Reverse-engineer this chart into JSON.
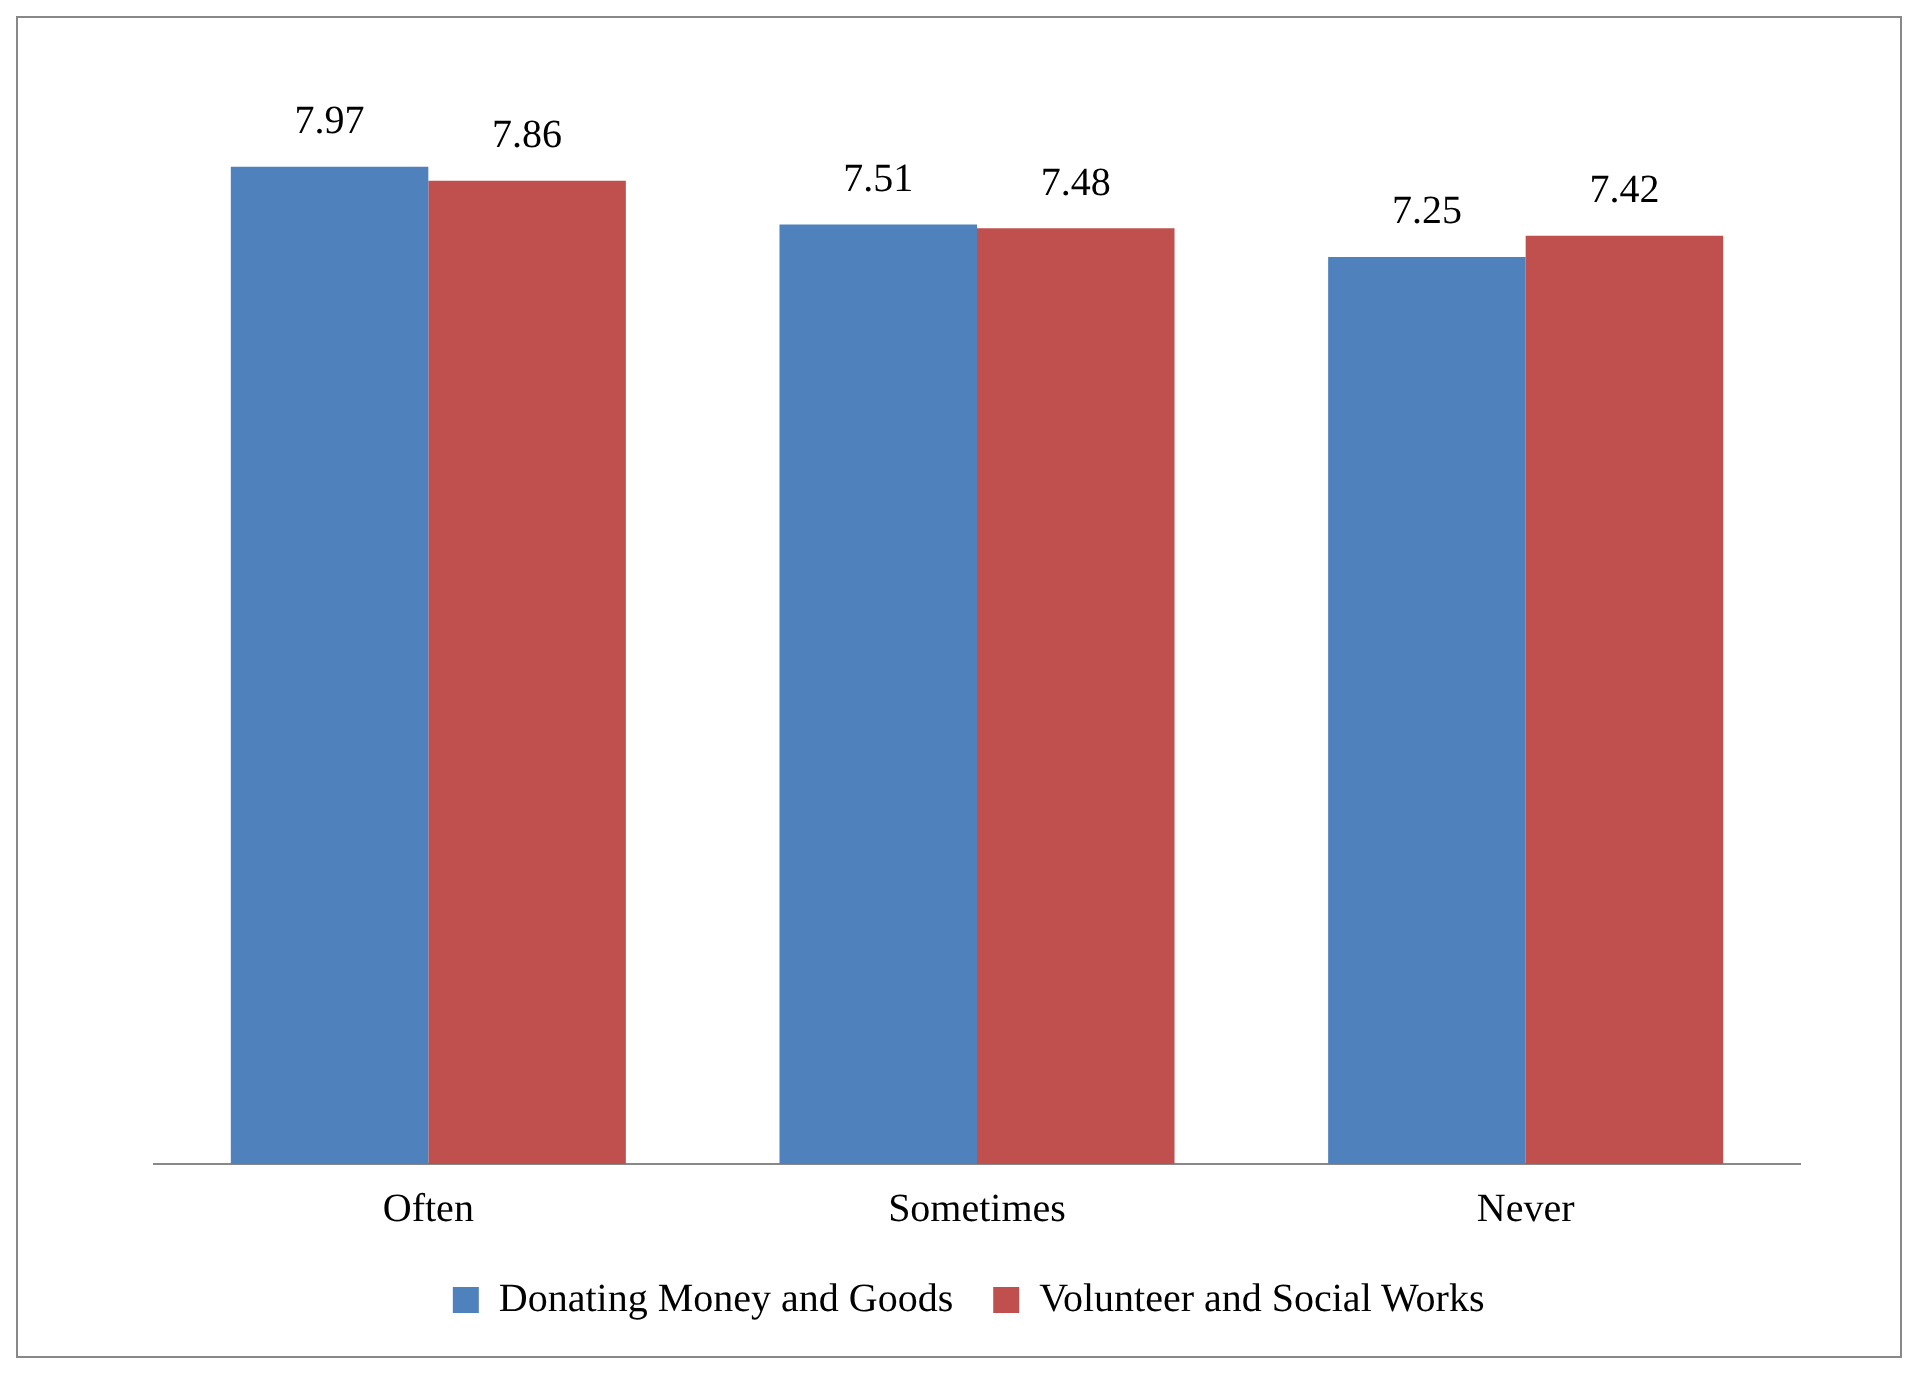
{
  "chart_data": {
    "type": "bar",
    "categories": [
      "Often",
      "Sometimes",
      "Never"
    ],
    "series": [
      {
        "name": "Donating Money and Goods",
        "color": "#4f81bd",
        "values": [
          7.97,
          7.51,
          7.25
        ]
      },
      {
        "name": "Volunteer and Social Works",
        "color": "#c0504d",
        "values": [
          7.86,
          7.48,
          7.42
        ]
      }
    ],
    "data_labels": true,
    "tick_labels": "x",
    "grid": false,
    "legend": "bottom"
  }
}
